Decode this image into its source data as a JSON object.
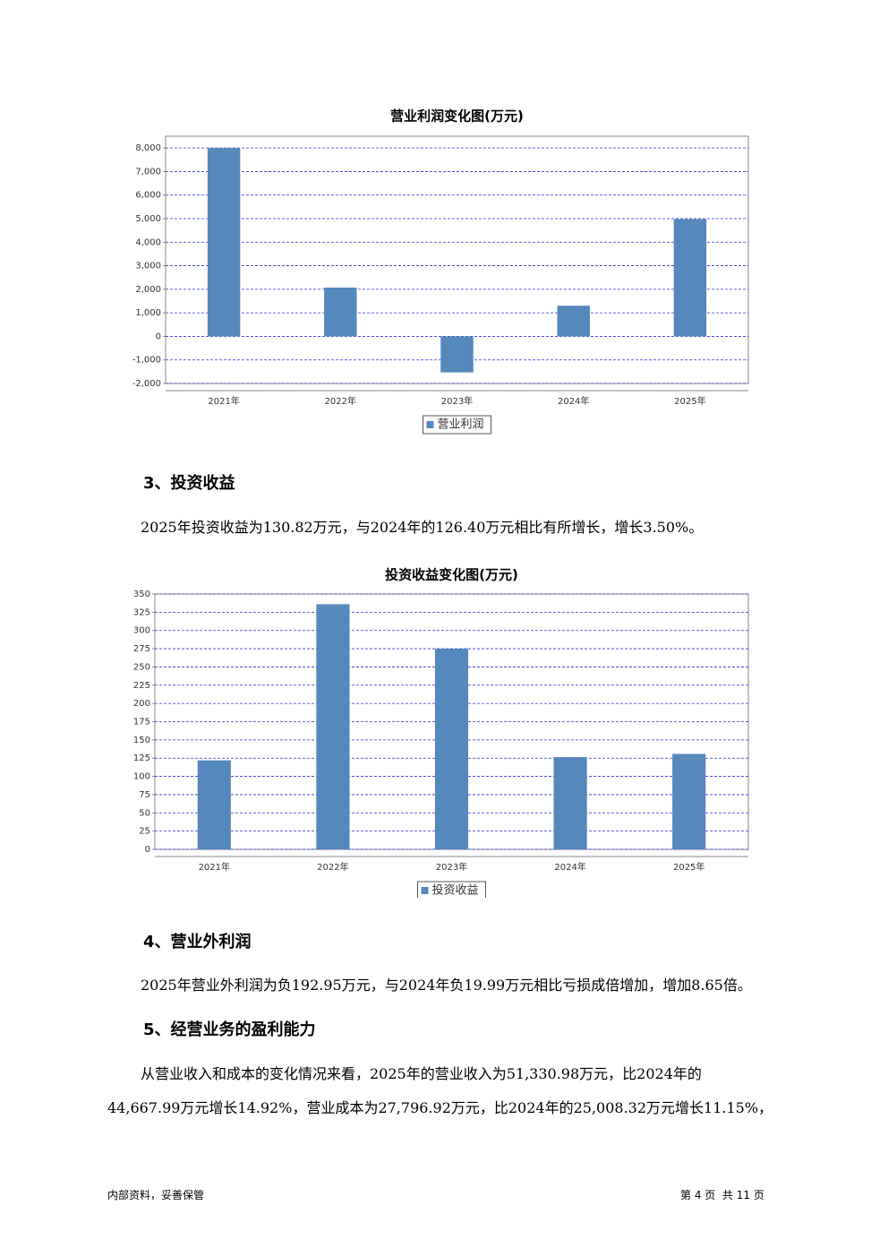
{
  "chart_data": [
    {
      "type": "bar",
      "title": "营业利润变化图(万元)",
      "categories": [
        "2021年",
        "2022年",
        "2023年",
        "2024年",
        "2025年"
      ],
      "series": [
        {
          "name": "营业利润",
          "color": "#5588bb",
          "values": [
            8000,
            2070,
            -1530,
            1300,
            4980
          ]
        }
      ],
      "ylim": [
        -2000,
        8500
      ],
      "yticks": [
        {
          "value": -2000,
          "label": "-2,000"
        },
        {
          "value": -1000,
          "label": "-1,000"
        },
        0,
        {
          "value": 1000,
          "label": "1,000"
        },
        {
          "value": 2000,
          "label": "2,000"
        },
        {
          "value": 3000,
          "label": "3,000"
        },
        {
          "value": 4000,
          "label": "4,000"
        },
        {
          "value": 5000,
          "label": "5,000"
        },
        {
          "value": 6000,
          "label": "6,000"
        },
        {
          "value": 7000,
          "label": "7,000"
        },
        {
          "value": 8000,
          "label": "8,000"
        }
      ],
      "grid": true
    },
    {
      "type": "bar",
      "title": "投资收益变化图(万元)",
      "categories": [
        "2021年",
        "2022年",
        "2023年",
        "2024年",
        "2025年"
      ],
      "series": [
        {
          "name": "投资收益",
          "color": "#5588bb",
          "values": [
            122,
            336,
            275,
            126.4,
            130.82
          ]
        }
      ],
      "ylim": [
        0,
        350
      ],
      "yticks": [
        0,
        25,
        50,
        75,
        100,
        125,
        150,
        175,
        200,
        225,
        250,
        275,
        300,
        325,
        350
      ],
      "grid": true
    }
  ],
  "sections": [
    {
      "heading": "3、投资收益",
      "lines": [
        "2025年投资收益为130.82万元，与2024年的126.40万元相比有所增长，增长3.50%。"
      ]
    },
    {
      "heading": "4、营业外利润",
      "lines": [
        "2025年营业外利润为负192.95万元，与2024年负19.99万元相比亏损成倍增加，增加8.65倍。"
      ]
    },
    {
      "heading": "5、经营业务的盈利能力",
      "lines": [
        "从营业收入和成本的变化情况来看，2025年的营业收入为51,330.98万元，比2024年的",
        "44,667.99万元增长14.92%，营业成本为27,796.92万元，比2024年的25,008.32万元增长11.15%，"
      ]
    }
  ],
  "footer": {
    "left": "内部资料，妥善保管",
    "right": "第 4 页  共 11 页"
  }
}
